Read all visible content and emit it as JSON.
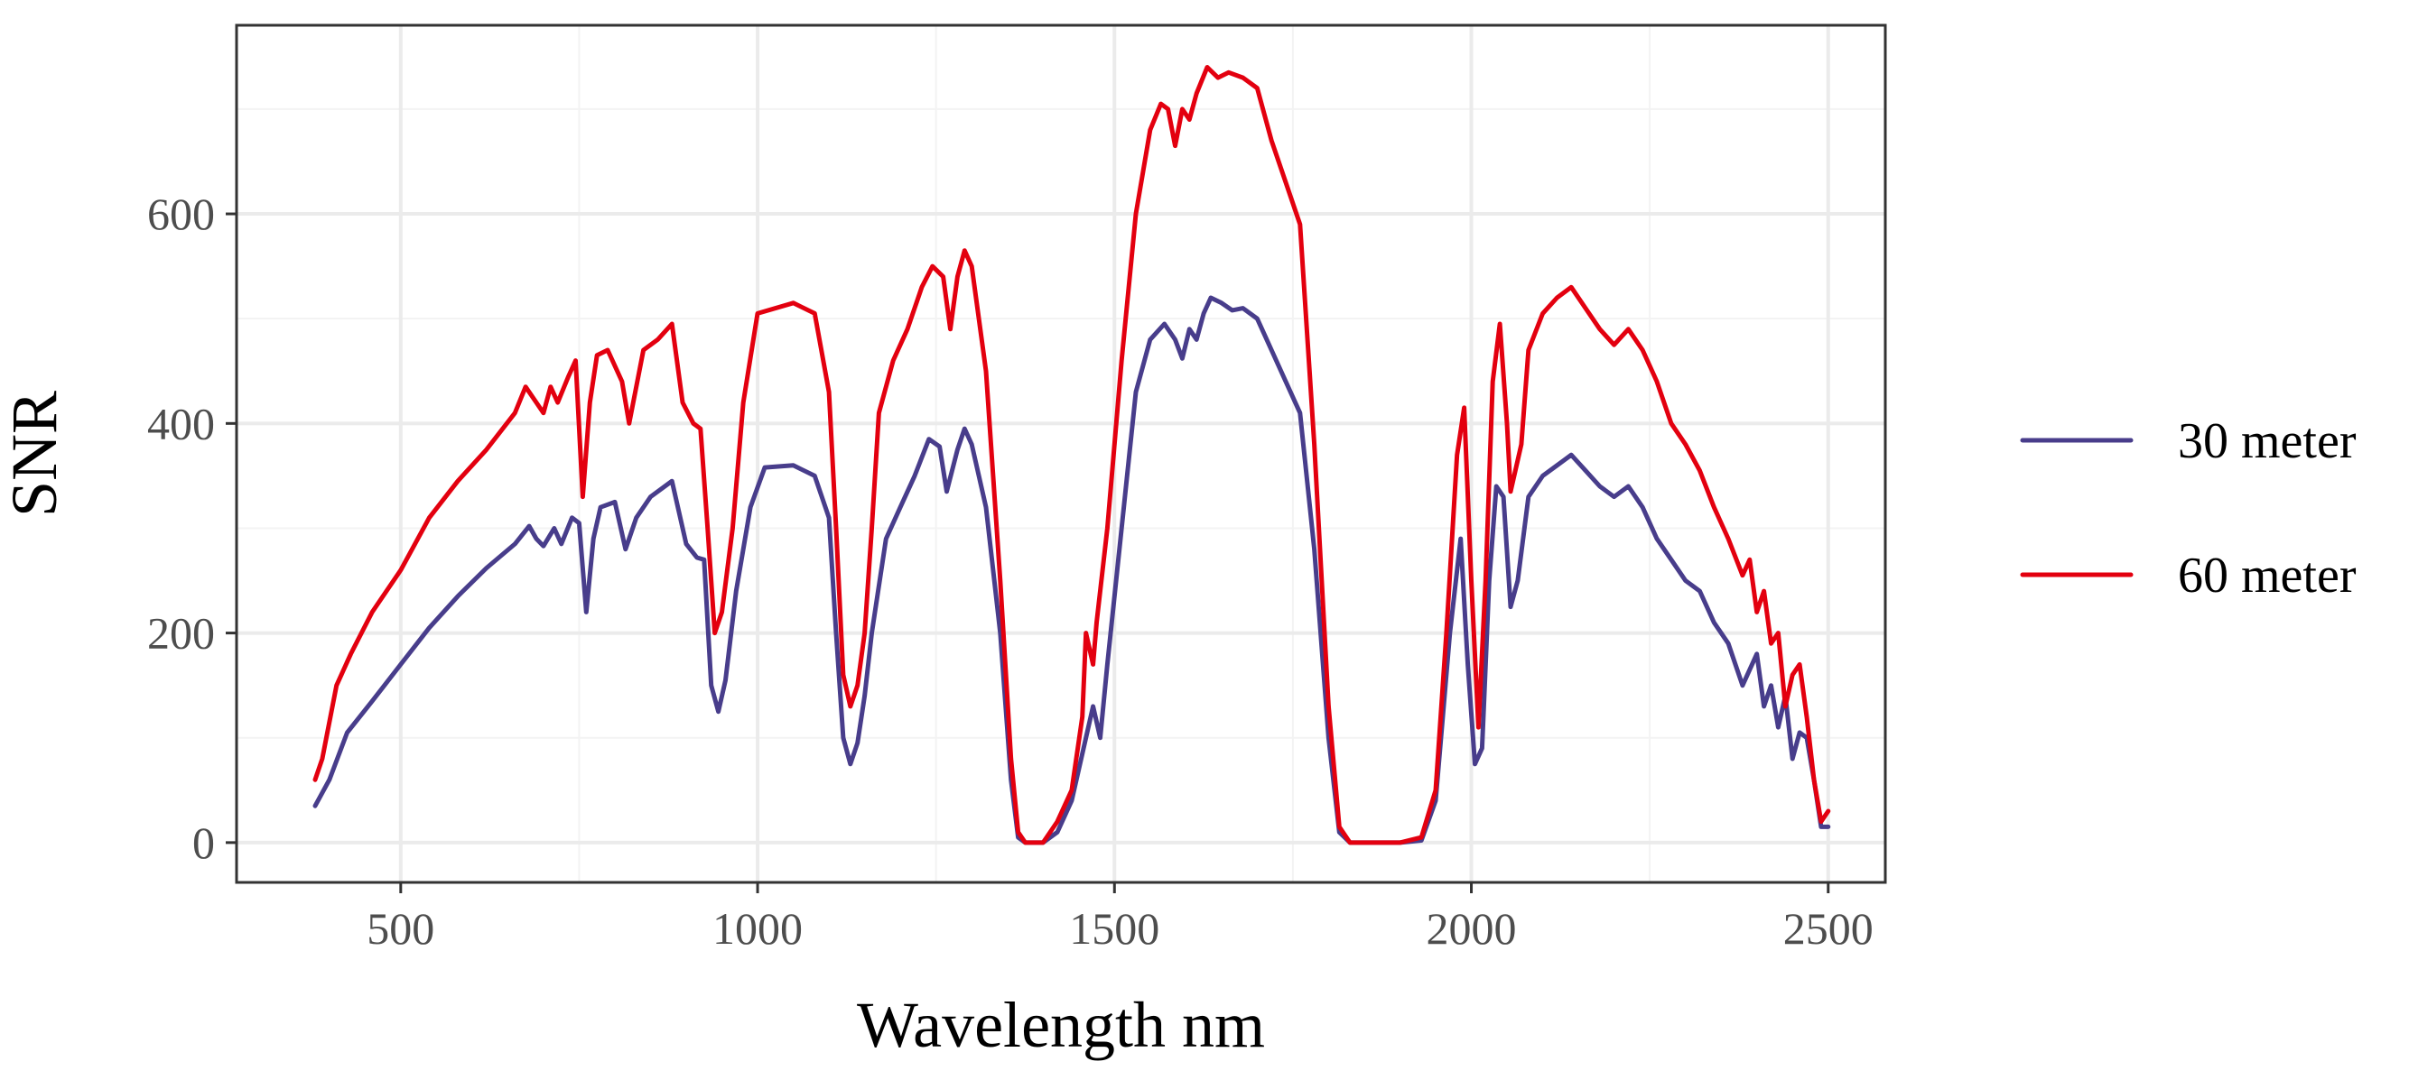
{
  "chart_data": {
    "type": "line",
    "title": "",
    "xlabel": "Wavelength nm",
    "ylabel": "SNR",
    "xlim": [
      270,
      2580
    ],
    "ylim": [
      -38,
      780
    ],
    "xticks": [
      500,
      1000,
      1500,
      2000,
      2500
    ],
    "xtick_labels": [
      "500",
      "1000",
      "1500",
      "2000",
      "2500"
    ],
    "yticks": [
      0,
      200,
      400,
      600
    ],
    "ytick_labels": [
      "0",
      "200",
      "400",
      "600"
    ],
    "x_minor_ticks": [
      750,
      1250,
      1750,
      2250
    ],
    "y_minor_ticks": [
      100,
      300,
      500,
      700
    ],
    "grid": true,
    "legend_position": "right",
    "series": [
      {
        "name": "30 meter",
        "color": "#483d8b",
        "points": [
          [
            380,
            35
          ],
          [
            400,
            60
          ],
          [
            425,
            105
          ],
          [
            460,
            135
          ],
          [
            500,
            170
          ],
          [
            540,
            205
          ],
          [
            580,
            235
          ],
          [
            620,
            262
          ],
          [
            660,
            285
          ],
          [
            680,
            302
          ],
          [
            690,
            290
          ],
          [
            700,
            283
          ],
          [
            715,
            300
          ],
          [
            725,
            285
          ],
          [
            740,
            310
          ],
          [
            750,
            305
          ],
          [
            760,
            220
          ],
          [
            770,
            290
          ],
          [
            780,
            320
          ],
          [
            800,
            325
          ],
          [
            815,
            280
          ],
          [
            830,
            310
          ],
          [
            850,
            330
          ],
          [
            880,
            345
          ],
          [
            900,
            285
          ],
          [
            915,
            272
          ],
          [
            925,
            270
          ],
          [
            935,
            150
          ],
          [
            945,
            125
          ],
          [
            955,
            155
          ],
          [
            970,
            240
          ],
          [
            990,
            320
          ],
          [
            1010,
            358
          ],
          [
            1050,
            360
          ],
          [
            1080,
            350
          ],
          [
            1100,
            310
          ],
          [
            1110,
            200
          ],
          [
            1120,
            100
          ],
          [
            1130,
            75
          ],
          [
            1140,
            95
          ],
          [
            1150,
            140
          ],
          [
            1160,
            200
          ],
          [
            1180,
            290
          ],
          [
            1200,
            320
          ],
          [
            1220,
            350
          ],
          [
            1240,
            385
          ],
          [
            1255,
            378
          ],
          [
            1265,
            335
          ],
          [
            1280,
            375
          ],
          [
            1290,
            395
          ],
          [
            1300,
            380
          ],
          [
            1320,
            320
          ],
          [
            1340,
            200
          ],
          [
            1355,
            60
          ],
          [
            1365,
            5
          ],
          [
            1375,
            0
          ],
          [
            1400,
            0
          ],
          [
            1420,
            10
          ],
          [
            1440,
            40
          ],
          [
            1460,
            100
          ],
          [
            1470,
            130
          ],
          [
            1480,
            100
          ],
          [
            1490,
            170
          ],
          [
            1510,
            300
          ],
          [
            1530,
            430
          ],
          [
            1550,
            480
          ],
          [
            1570,
            495
          ],
          [
            1585,
            480
          ],
          [
            1595,
            462
          ],
          [
            1605,
            490
          ],
          [
            1615,
            480
          ],
          [
            1625,
            505
          ],
          [
            1635,
            520
          ],
          [
            1650,
            515
          ],
          [
            1665,
            508
          ],
          [
            1680,
            510
          ],
          [
            1700,
            500
          ],
          [
            1720,
            470
          ],
          [
            1740,
            440
          ],
          [
            1760,
            410
          ],
          [
            1780,
            280
          ],
          [
            1800,
            100
          ],
          [
            1815,
            10
          ],
          [
            1830,
            0
          ],
          [
            1900,
            0
          ],
          [
            1930,
            2
          ],
          [
            1950,
            40
          ],
          [
            1970,
            200
          ],
          [
            1985,
            290
          ],
          [
            1995,
            170
          ],
          [
            2005,
            75
          ],
          [
            2015,
            90
          ],
          [
            2025,
            250
          ],
          [
            2035,
            340
          ],
          [
            2045,
            330
          ],
          [
            2055,
            225
          ],
          [
            2065,
            250
          ],
          [
            2080,
            330
          ],
          [
            2100,
            350
          ],
          [
            2120,
            360
          ],
          [
            2140,
            370
          ],
          [
            2160,
            355
          ],
          [
            2180,
            340
          ],
          [
            2200,
            330
          ],
          [
            2220,
            340
          ],
          [
            2240,
            320
          ],
          [
            2260,
            290
          ],
          [
            2280,
            270
          ],
          [
            2300,
            250
          ],
          [
            2320,
            240
          ],
          [
            2340,
            210
          ],
          [
            2360,
            190
          ],
          [
            2380,
            150
          ],
          [
            2400,
            180
          ],
          [
            2410,
            130
          ],
          [
            2420,
            150
          ],
          [
            2430,
            110
          ],
          [
            2440,
            140
          ],
          [
            2450,
            80
          ],
          [
            2460,
            105
          ],
          [
            2470,
            100
          ],
          [
            2480,
            60
          ],
          [
            2490,
            15
          ],
          [
            2500,
            15
          ]
        ]
      },
      {
        "name": "60 meter",
        "color": "#e3000f",
        "points": [
          [
            380,
            60
          ],
          [
            390,
            80
          ],
          [
            410,
            150
          ],
          [
            430,
            180
          ],
          [
            460,
            220
          ],
          [
            500,
            260
          ],
          [
            540,
            310
          ],
          [
            580,
            345
          ],
          [
            620,
            375
          ],
          [
            660,
            410
          ],
          [
            675,
            435
          ],
          [
            690,
            420
          ],
          [
            700,
            410
          ],
          [
            710,
            435
          ],
          [
            720,
            420
          ],
          [
            735,
            445
          ],
          [
            745,
            460
          ],
          [
            755,
            330
          ],
          [
            765,
            420
          ],
          [
            775,
            465
          ],
          [
            790,
            470
          ],
          [
            810,
            440
          ],
          [
            820,
            400
          ],
          [
            840,
            470
          ],
          [
            860,
            480
          ],
          [
            880,
            495
          ],
          [
            895,
            420
          ],
          [
            910,
            400
          ],
          [
            920,
            395
          ],
          [
            930,
            300
          ],
          [
            940,
            200
          ],
          [
            950,
            220
          ],
          [
            965,
            300
          ],
          [
            980,
            420
          ],
          [
            1000,
            505
          ],
          [
            1050,
            515
          ],
          [
            1080,
            505
          ],
          [
            1100,
            430
          ],
          [
            1110,
            300
          ],
          [
            1120,
            160
          ],
          [
            1130,
            130
          ],
          [
            1140,
            150
          ],
          [
            1150,
            200
          ],
          [
            1160,
            300
          ],
          [
            1170,
            410
          ],
          [
            1190,
            460
          ],
          [
            1210,
            490
          ],
          [
            1230,
            530
          ],
          [
            1245,
            550
          ],
          [
            1260,
            540
          ],
          [
            1270,
            490
          ],
          [
            1280,
            540
          ],
          [
            1290,
            565
          ],
          [
            1300,
            550
          ],
          [
            1320,
            450
          ],
          [
            1340,
            250
          ],
          [
            1355,
            80
          ],
          [
            1365,
            10
          ],
          [
            1375,
            0
          ],
          [
            1400,
            0
          ],
          [
            1420,
            20
          ],
          [
            1440,
            50
          ],
          [
            1455,
            120
          ],
          [
            1460,
            200
          ],
          [
            1470,
            170
          ],
          [
            1475,
            210
          ],
          [
            1490,
            300
          ],
          [
            1510,
            460
          ],
          [
            1530,
            600
          ],
          [
            1550,
            680
          ],
          [
            1565,
            705
          ],
          [
            1575,
            700
          ],
          [
            1585,
            665
          ],
          [
            1595,
            700
          ],
          [
            1605,
            690
          ],
          [
            1615,
            715
          ],
          [
            1630,
            740
          ],
          [
            1645,
            730
          ],
          [
            1660,
            735
          ],
          [
            1680,
            730
          ],
          [
            1700,
            720
          ],
          [
            1720,
            670
          ],
          [
            1740,
            630
          ],
          [
            1760,
            590
          ],
          [
            1780,
            380
          ],
          [
            1800,
            130
          ],
          [
            1815,
            15
          ],
          [
            1830,
            0
          ],
          [
            1900,
            0
          ],
          [
            1930,
            5
          ],
          [
            1950,
            50
          ],
          [
            1965,
            200
          ],
          [
            1980,
            370
          ],
          [
            1990,
            415
          ],
          [
            2000,
            250
          ],
          [
            2010,
            110
          ],
          [
            2020,
            250
          ],
          [
            2030,
            440
          ],
          [
            2040,
            495
          ],
          [
            2050,
            400
          ],
          [
            2055,
            335
          ],
          [
            2070,
            380
          ],
          [
            2080,
            470
          ],
          [
            2100,
            505
          ],
          [
            2120,
            520
          ],
          [
            2140,
            530
          ],
          [
            2160,
            510
          ],
          [
            2180,
            490
          ],
          [
            2200,
            475
          ],
          [
            2220,
            490
          ],
          [
            2240,
            470
          ],
          [
            2260,
            440
          ],
          [
            2280,
            400
          ],
          [
            2300,
            380
          ],
          [
            2320,
            355
          ],
          [
            2340,
            320
          ],
          [
            2360,
            290
          ],
          [
            2380,
            255
          ],
          [
            2390,
            270
          ],
          [
            2400,
            220
          ],
          [
            2410,
            240
          ],
          [
            2420,
            190
          ],
          [
            2430,
            200
          ],
          [
            2440,
            130
          ],
          [
            2450,
            160
          ],
          [
            2460,
            170
          ],
          [
            2470,
            120
          ],
          [
            2480,
            60
          ],
          [
            2490,
            20
          ],
          [
            2500,
            30
          ]
        ]
      }
    ]
  }
}
